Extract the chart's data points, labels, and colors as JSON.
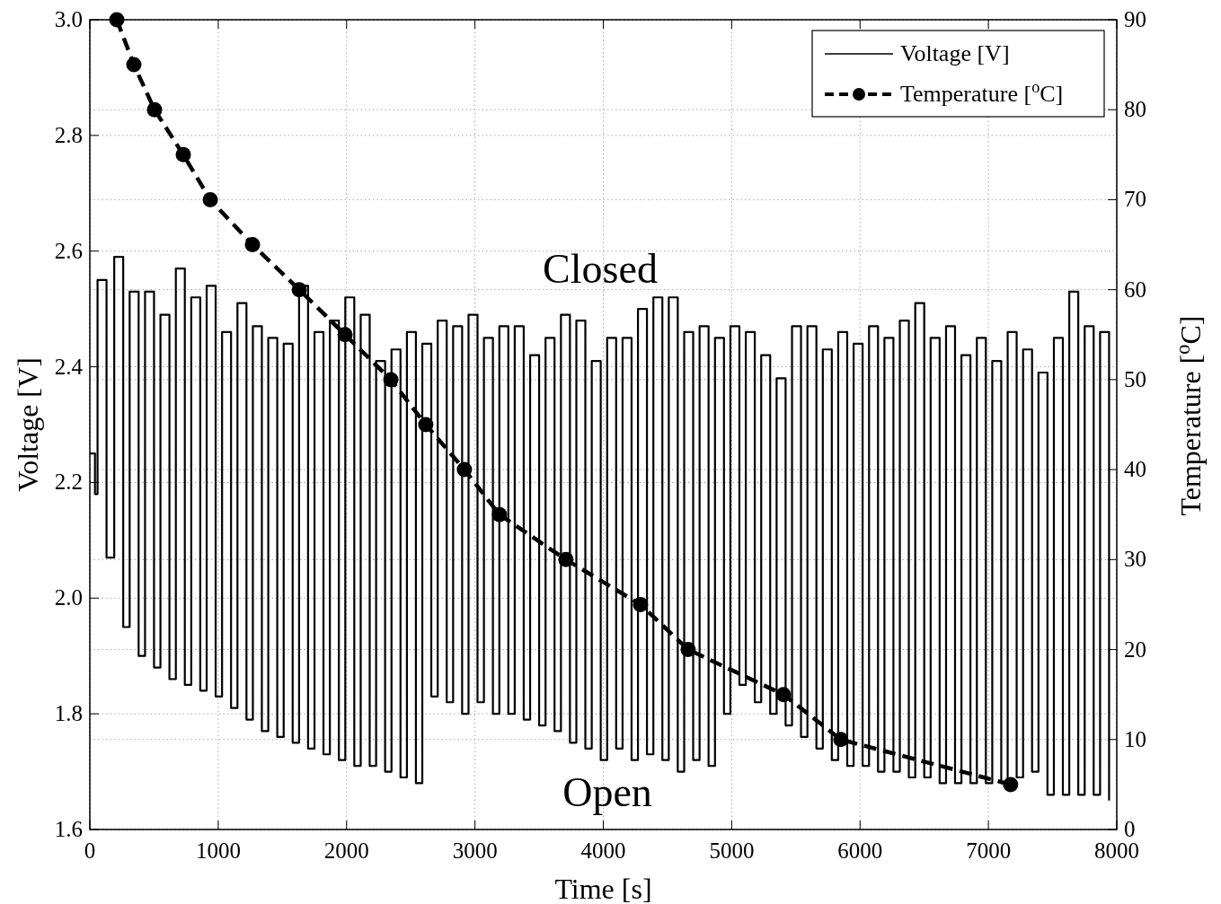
{
  "chart_data": {
    "type": "line",
    "xlabel": "Time [s]",
    "ylabel": "Voltage [V]",
    "y2label": "Temperature [$^{o}$C]",
    "xlim": [
      0,
      8000
    ],
    "xticks": [
      0,
      1000,
      2000,
      3000,
      4000,
      5000,
      6000,
      7000,
      8000
    ],
    "ylim": [
      1.6,
      3.0
    ],
    "yticks": [
      {
        "value": 1.6,
        "label": "1.6"
      },
      {
        "value": 1.8,
        "label": "1.8"
      },
      {
        "value": 2.0,
        "label": "2.0"
      },
      {
        "value": 2.2,
        "label": "2.2"
      },
      {
        "value": 2.4,
        "label": "2.4"
      },
      {
        "value": 2.6,
        "label": "2.6"
      },
      {
        "value": 2.8,
        "label": "2.8"
      },
      {
        "value": 3.0,
        "label": "3.0"
      }
    ],
    "y2lim": [
      0,
      90
    ],
    "y2ticks": [
      0,
      10,
      20,
      30,
      40,
      50,
      60,
      70,
      80,
      90
    ],
    "grid": true,
    "legend": "top right",
    "annotations": [
      "Closed",
      "Open"
    ],
    "series": [
      {
        "name": "Voltage [V]",
        "type": "step",
        "color": "#000000",
        "marker": "none",
        "line_style": "solid",
        "x": [
          0,
          40,
          60,
          130,
          190,
          260,
          310,
          380,
          430,
          500,
          550,
          620,
          670,
          740,
          790,
          860,
          910,
          980,
          1030,
          1100,
          1150,
          1220,
          1270,
          1340,
          1390,
          1460,
          1510,
          1580,
          1630,
          1700,
          1750,
          1820,
          1870,
          1940,
          1990,
          2060,
          2110,
          2180,
          2230,
          2300,
          2350,
          2420,
          2470,
          2540,
          2590,
          2660,
          2710,
          2780,
          2830,
          2900,
          2950,
          3020,
          3070,
          3140,
          3190,
          3260,
          3310,
          3380,
          3430,
          3500,
          3550,
          3620,
          3670,
          3740,
          3790,
          3860,
          3910,
          3980,
          4030,
          4100,
          4150,
          4220,
          4270,
          4340,
          4390,
          4460,
          4510,
          4580,
          4630,
          4700,
          4750,
          4820,
          4870,
          4940,
          4990,
          5060,
          5110,
          5180,
          5230,
          5300,
          5350,
          5420,
          5470,
          5540,
          5590,
          5660,
          5710,
          5780,
          5830,
          5900,
          5950,
          6020,
          6070,
          6140,
          6190,
          6260,
          6310,
          6380,
          6430,
          6500,
          6550,
          6620,
          6670,
          6740,
          6790,
          6860,
          6910,
          6980,
          7030,
          7100,
          7150,
          7220,
          7270,
          7340,
          7390,
          7460,
          7510,
          7580,
          7630,
          7700,
          7750,
          7820,
          7870,
          7940
        ],
        "values": [
          2.25,
          2.18,
          2.55,
          2.07,
          2.59,
          1.95,
          2.53,
          1.9,
          2.53,
          1.88,
          2.49,
          1.86,
          2.57,
          1.85,
          2.52,
          1.84,
          2.54,
          1.83,
          2.46,
          1.81,
          2.51,
          1.79,
          2.47,
          1.77,
          2.45,
          1.76,
          2.44,
          1.75,
          2.54,
          1.74,
          2.46,
          1.73,
          2.48,
          1.72,
          2.52,
          1.71,
          2.49,
          1.71,
          2.41,
          1.7,
          2.43,
          1.69,
          2.46,
          1.68,
          2.44,
          1.83,
          2.48,
          1.82,
          2.47,
          1.8,
          2.49,
          1.82,
          2.45,
          1.8,
          2.47,
          1.8,
          2.47,
          1.79,
          2.42,
          1.78,
          2.45,
          1.77,
          2.49,
          1.75,
          2.48,
          1.74,
          2.41,
          1.72,
          2.45,
          1.74,
          2.45,
          1.72,
          2.5,
          1.73,
          2.52,
          1.72,
          2.52,
          1.7,
          2.46,
          1.72,
          2.47,
          1.71,
          2.45,
          1.8,
          2.47,
          1.85,
          2.46,
          1.82,
          2.42,
          1.8,
          2.38,
          1.78,
          2.47,
          1.76,
          2.47,
          1.74,
          2.43,
          1.72,
          2.46,
          1.71,
          2.44,
          1.71,
          2.47,
          1.7,
          2.45,
          1.7,
          2.48,
          1.69,
          2.51,
          1.69,
          2.45,
          1.68,
          2.47,
          1.68,
          2.42,
          1.68,
          2.45,
          1.68,
          2.41,
          1.68,
          2.46,
          1.69,
          2.43,
          1.7,
          2.39,
          1.66,
          2.45,
          1.66,
          2.53,
          1.66,
          2.47,
          1.66,
          2.46,
          1.65
        ]
      },
      {
        "name": "Temperature [$^{o}$C]",
        "axis": "y2",
        "color": "#000000",
        "marker": "circle",
        "line_style": "dashed",
        "x": [
          210,
          343,
          504,
          728,
          938,
          1267,
          1631,
          1988,
          2345,
          2617,
          2918,
          3191,
          3709,
          4290,
          4661,
          5403,
          5850,
          7173
        ],
        "values": [
          90,
          85,
          80,
          75,
          70,
          65,
          60,
          55,
          50,
          45,
          40,
          35,
          30,
          25,
          20,
          15,
          10,
          5
        ]
      }
    ]
  }
}
